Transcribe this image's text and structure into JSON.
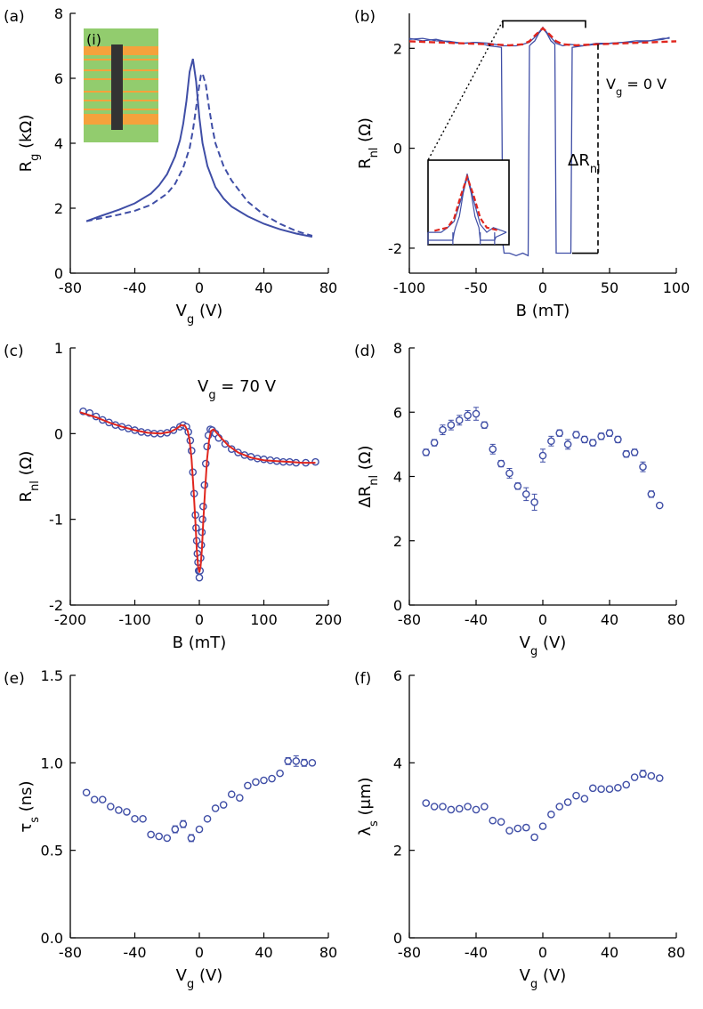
{
  "figure": {
    "colors": {
      "data": "#3f4ea6",
      "fit": "#e0261e",
      "axes": "#000000",
      "inset_green": "#92cc6e",
      "inset_orange": "#f5a23c",
      "inset_bar": "#333333"
    }
  },
  "chart_data": [
    {
      "panel": "(a)",
      "type": "line",
      "xlabel": "V",
      "xlabel_sub": "g",
      "xlabel_unit": " (V)",
      "ylabel": "R",
      "ylabel_sub": "g",
      "ylabel_unit": " (kΩ)",
      "xlim": [
        -80,
        80
      ],
      "ylim": [
        0,
        8
      ],
      "xticks": [
        -80,
        -40,
        0,
        40,
        80
      ],
      "yticks": [
        0,
        2,
        4,
        6,
        8
      ],
      "inset_label": "(i)",
      "series": [
        {
          "style": "solid",
          "x": [
            -70,
            -60,
            -50,
            -40,
            -30,
            -25,
            -20,
            -15,
            -12,
            -10,
            -8,
            -6,
            -4,
            -2,
            0,
            2,
            5,
            10,
            15,
            20,
            30,
            40,
            50,
            60,
            70
          ],
          "y": [
            1.6,
            1.78,
            1.95,
            2.15,
            2.45,
            2.7,
            3.05,
            3.6,
            4.1,
            4.6,
            5.3,
            6.2,
            6.6,
            5.9,
            4.8,
            4.0,
            3.3,
            2.65,
            2.3,
            2.05,
            1.75,
            1.52,
            1.35,
            1.22,
            1.12
          ]
        },
        {
          "style": "dashed",
          "x": [
            -70,
            -60,
            -50,
            -40,
            -30,
            -20,
            -15,
            -10,
            -6,
            -4,
            -2,
            0,
            1,
            2,
            4,
            6,
            8,
            10,
            15,
            20,
            30,
            40,
            50,
            60,
            70
          ],
          "y": [
            1.6,
            1.7,
            1.8,
            1.92,
            2.1,
            2.45,
            2.75,
            3.25,
            3.85,
            4.4,
            5.1,
            5.8,
            6.1,
            6.15,
            5.8,
            5.1,
            4.5,
            4.0,
            3.3,
            2.85,
            2.2,
            1.8,
            1.52,
            1.3,
            1.15
          ]
        }
      ]
    },
    {
      "panel": "(b)",
      "type": "line",
      "xlabel": "B (mT)",
      "ylabel": "R",
      "ylabel_sub": "nl",
      "ylabel_unit": " (Ω)",
      "xlim": [
        -100,
        100
      ],
      "ylim": [
        -2.5,
        2.7
      ],
      "xticks": [
        -100,
        -50,
        0,
        50,
        100
      ],
      "yticks": [
        -2,
        0,
        2
      ],
      "annotations": {
        "vg_label": "V",
        "vg_sub": "g",
        "vg_rest": " = 0 V",
        "delta_label": "ΔR",
        "delta_sub": "nl"
      },
      "series": [
        {
          "name": "sweep-up",
          "x": [
            -100,
            -90,
            -80,
            -70,
            -60,
            -50,
            -40,
            -34,
            -31,
            -30,
            -29,
            -25,
            -20,
            -15,
            -11,
            -10,
            -9,
            -6,
            -3,
            0,
            3,
            6,
            9,
            10,
            11,
            15,
            20,
            21,
            22,
            30,
            40,
            50,
            60,
            70,
            80,
            90,
            95
          ],
          "y": [
            2.2,
            2.15,
            2.18,
            2.12,
            2.1,
            2.12,
            2.05,
            2.03,
            2.02,
            -1.9,
            -2.1,
            -2.1,
            -2.15,
            -2.1,
            -2.15,
            2.05,
            2.08,
            2.15,
            2.3,
            2.4,
            2.3,
            2.15,
            2.08,
            -2.1,
            -2.1,
            -2.1,
            -2.1,
            -2.1,
            2.02,
            2.05,
            2.1,
            2.1,
            2.12,
            2.15,
            2.15,
            2.2,
            2.2
          ]
        },
        {
          "name": "sweep-down",
          "x": [
            -100,
            -90,
            -80,
            -70,
            -60,
            -50,
            -40,
            -30,
            -20,
            -15,
            -10,
            -5,
            0,
            5,
            10,
            15,
            20,
            30,
            40,
            50,
            60,
            70,
            80,
            90,
            95
          ],
          "y": [
            2.18,
            2.2,
            2.15,
            2.14,
            2.1,
            2.12,
            2.1,
            2.05,
            2.05,
            2.08,
            2.12,
            2.25,
            2.42,
            2.25,
            2.1,
            2.05,
            2.08,
            2.05,
            2.08,
            2.1,
            2.12,
            2.12,
            2.15,
            2.18,
            2.22
          ]
        },
        {
          "name": "fit",
          "style": "dashed",
          "x": [
            -100,
            -80,
            -60,
            -40,
            -25,
            -15,
            -10,
            -5,
            0,
            5,
            10,
            15,
            25,
            40,
            60,
            80,
            100
          ],
          "y": [
            2.14,
            2.12,
            2.1,
            2.08,
            2.06,
            2.08,
            2.14,
            2.28,
            2.4,
            2.28,
            2.14,
            2.08,
            2.06,
            2.08,
            2.1,
            2.12,
            2.14
          ]
        }
      ]
    },
    {
      "panel": "(c)",
      "type": "scatter",
      "xlabel": "B (mT)",
      "ylabel": "R",
      "ylabel_sub": "nl",
      "ylabel_unit": " (Ω)",
      "xlim": [
        -200,
        200
      ],
      "ylim": [
        -2,
        1
      ],
      "xticks": [
        -200,
        -100,
        0,
        100,
        200
      ],
      "yticks": [
        -2,
        -1,
        0,
        1
      ],
      "annotations": {
        "vg_label": "V",
        "vg_sub": "g",
        "vg_rest": " = 70 V"
      },
      "points": {
        "x": [
          -180,
          -170,
          -160,
          -150,
          -140,
          -130,
          -120,
          -110,
          -100,
          -90,
          -80,
          -70,
          -60,
          -50,
          -40,
          -30,
          -25,
          -20,
          -17,
          -14,
          -12,
          -10,
          -8,
          -6,
          -5,
          -4,
          -3,
          -2,
          -1,
          0,
          1,
          2,
          3,
          4,
          5,
          6,
          8,
          10,
          12,
          14,
          17,
          20,
          25,
          30,
          40,
          50,
          60,
          70,
          80,
          90,
          100,
          110,
          120,
          130,
          140,
          150,
          165,
          180
        ],
        "y": [
          0.26,
          0.24,
          0.2,
          0.16,
          0.13,
          0.1,
          0.08,
          0.06,
          0.04,
          0.02,
          0.01,
          0.0,
          0.0,
          0.01,
          0.04,
          0.08,
          0.1,
          0.08,
          0.02,
          -0.08,
          -0.2,
          -0.45,
          -0.7,
          -0.95,
          -1.1,
          -1.25,
          -1.4,
          -1.5,
          -1.6,
          -1.68,
          -1.6,
          -1.45,
          -1.3,
          -1.15,
          -1.0,
          -0.85,
          -0.6,
          -0.35,
          -0.15,
          -0.02,
          0.05,
          0.04,
          0.0,
          -0.05,
          -0.12,
          -0.18,
          -0.22,
          -0.25,
          -0.27,
          -0.29,
          -0.3,
          -0.31,
          -0.32,
          -0.33,
          -0.33,
          -0.34,
          -0.34,
          -0.33
        ]
      },
      "fit": {
        "x": [
          -185,
          -160,
          -140,
          -120,
          -100,
          -80,
          -60,
          -45,
          -35,
          -28,
          -22,
          -18,
          -15,
          -12,
          -9,
          -6,
          -4,
          -2,
          0,
          2,
          4,
          6,
          9,
          12,
          15,
          18,
          22,
          28,
          35,
          45,
          60,
          80,
          100,
          120,
          140,
          160,
          180
        ],
        "y": [
          0.25,
          0.19,
          0.13,
          0.08,
          0.04,
          0.01,
          0.0,
          0.02,
          0.06,
          0.1,
          0.09,
          0.03,
          -0.08,
          -0.3,
          -0.65,
          -1.05,
          -1.35,
          -1.55,
          -1.62,
          -1.55,
          -1.35,
          -1.05,
          -0.65,
          -0.3,
          -0.08,
          0.03,
          0.05,
          0.0,
          -0.06,
          -0.14,
          -0.22,
          -0.28,
          -0.31,
          -0.32,
          -0.33,
          -0.34,
          -0.34
        ]
      }
    },
    {
      "panel": "(d)",
      "type": "scatter",
      "xlabel": "V",
      "xlabel_sub": "g",
      "xlabel_unit": " (V)",
      "ylabel": "ΔR",
      "ylabel_sub": "nl",
      "ylabel_unit": " (Ω)",
      "xlim": [
        -80,
        80
      ],
      "ylim": [
        0,
        8
      ],
      "xticks": [
        -80,
        -40,
        0,
        40,
        80
      ],
      "yticks": [
        0,
        2,
        4,
        6,
        8
      ],
      "points": {
        "x": [
          -70,
          -65,
          -60,
          -55,
          -50,
          -45,
          -40,
          -35,
          -30,
          -25,
          -20,
          -15,
          -10,
          -5,
          0,
          5,
          10,
          15,
          20,
          25,
          30,
          35,
          40,
          45,
          50,
          55,
          60,
          65,
          70
        ],
        "y": [
          4.75,
          5.05,
          5.45,
          5.6,
          5.75,
          5.9,
          5.95,
          5.6,
          4.85,
          4.4,
          4.1,
          3.7,
          3.45,
          3.2,
          4.65,
          5.1,
          5.35,
          5.0,
          5.3,
          5.15,
          5.05,
          5.25,
          5.35,
          5.15,
          4.7,
          4.75,
          4.3,
          3.45,
          3.1
        ],
        "err": [
          0.1,
          0.1,
          0.15,
          0.15,
          0.15,
          0.15,
          0.2,
          0.1,
          0.15,
          0.1,
          0.15,
          0.1,
          0.2,
          0.25,
          0.2,
          0.15,
          0.1,
          0.15,
          0.1,
          0.1,
          0.1,
          0.1,
          0.1,
          0.1,
          0.1,
          0.1,
          0.15,
          0.1,
          0.05
        ]
      }
    },
    {
      "panel": "(e)",
      "type": "scatter",
      "xlabel": "V",
      "xlabel_sub": "g",
      "xlabel_unit": " (V)",
      "ylabel": "τ",
      "ylabel_sub": "s",
      "ylabel_unit": " (ns)",
      "xlim": [
        -80,
        80
      ],
      "ylim": [
        0,
        1.5
      ],
      "xticks": [
        -80,
        -40,
        0,
        40,
        80
      ],
      "yticks": [
        0.0,
        0.5,
        1.0,
        1.5
      ],
      "points": {
        "x": [
          -70,
          -65,
          -60,
          -55,
          -50,
          -45,
          -40,
          -35,
          -30,
          -25,
          -20,
          -15,
          -10,
          -5,
          0,
          5,
          10,
          15,
          20,
          25,
          30,
          35,
          40,
          45,
          50,
          55,
          60,
          65,
          70
        ],
        "y": [
          0.83,
          0.79,
          0.79,
          0.75,
          0.73,
          0.72,
          0.68,
          0.68,
          0.59,
          0.58,
          0.57,
          0.62,
          0.65,
          0.57,
          0.62,
          0.68,
          0.74,
          0.76,
          0.82,
          0.8,
          0.87,
          0.89,
          0.9,
          0.91,
          0.94,
          1.01,
          1.01,
          1.0,
          1.0
        ],
        "err": [
          0.01,
          0.01,
          0.01,
          0.01,
          0.01,
          0.01,
          0.01,
          0.01,
          0.01,
          0.01,
          0.01,
          0.02,
          0.02,
          0.02,
          0.01,
          0.01,
          0.01,
          0.01,
          0.01,
          0.01,
          0.01,
          0.01,
          0.01,
          0.01,
          0.01,
          0.02,
          0.03,
          0.02,
          0.01
        ]
      }
    },
    {
      "panel": "(f)",
      "type": "scatter",
      "xlabel": "V",
      "xlabel_sub": "g",
      "xlabel_unit": " (V)",
      "ylabel": "λ",
      "ylabel_sub": "s",
      "ylabel_unit": " (μm)",
      "xlim": [
        -80,
        80
      ],
      "ylim": [
        0,
        6
      ],
      "xticks": [
        -80,
        -40,
        0,
        40,
        80
      ],
      "yticks": [
        0,
        2,
        4,
        6
      ],
      "points": {
        "x": [
          -70,
          -65,
          -60,
          -55,
          -50,
          -45,
          -40,
          -35,
          -30,
          -25,
          -20,
          -15,
          -10,
          -5,
          0,
          5,
          10,
          15,
          20,
          25,
          30,
          35,
          40,
          45,
          50,
          55,
          60,
          65,
          70
        ],
        "y": [
          3.08,
          3.0,
          3.0,
          2.93,
          2.95,
          3.0,
          2.93,
          3.0,
          2.68,
          2.65,
          2.45,
          2.5,
          2.52,
          2.3,
          2.55,
          2.82,
          3.0,
          3.1,
          3.25,
          3.18,
          3.42,
          3.4,
          3.4,
          3.43,
          3.5,
          3.67,
          3.75,
          3.7,
          3.65
        ],
        "err": [
          0.04,
          0.04,
          0.04,
          0.04,
          0.04,
          0.04,
          0.04,
          0.04,
          0.04,
          0.04,
          0.04,
          0.04,
          0.06,
          0.06,
          0.05,
          0.04,
          0.04,
          0.04,
          0.04,
          0.04,
          0.04,
          0.04,
          0.04,
          0.04,
          0.04,
          0.05,
          0.08,
          0.05,
          0.04
        ]
      }
    }
  ]
}
